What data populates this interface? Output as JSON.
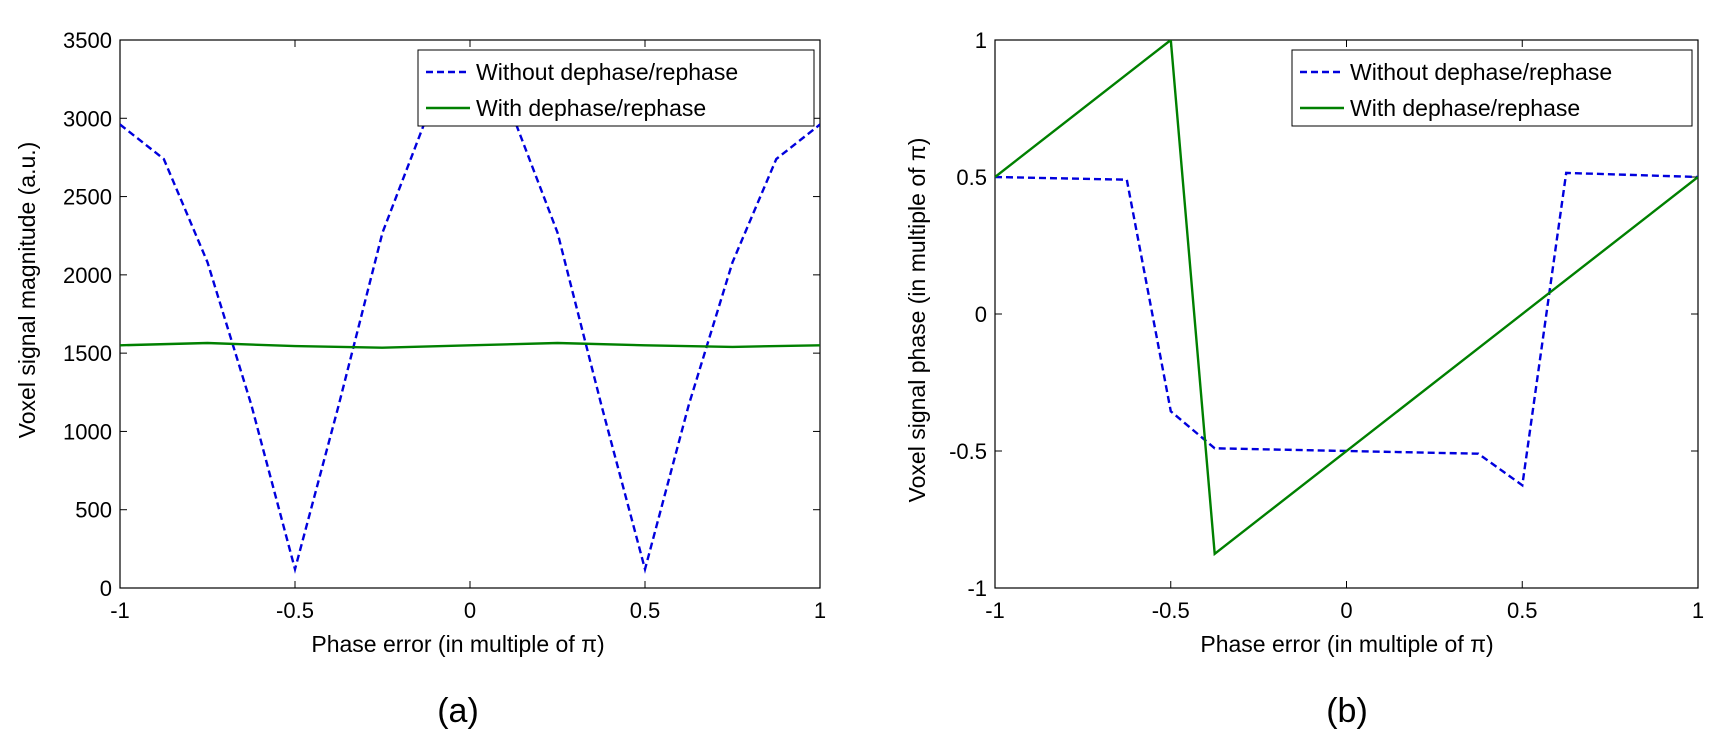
{
  "chart_data": [
    {
      "type": "line",
      "panel_label": "(a)",
      "xlabel": "Phase error (in multiple of π)",
      "ylabel": "Voxel signal magnitude (a.u.)",
      "xlim": [
        -1,
        1
      ],
      "ylim": [
        0,
        3500
      ],
      "xticks": [
        -1,
        -0.5,
        0,
        0.5,
        1
      ],
      "xtick_labels": [
        "-1",
        "-0.5",
        "0",
        "0.5",
        "1"
      ],
      "yticks": [
        0,
        500,
        1000,
        1500,
        2000,
        2500,
        3000,
        3500
      ],
      "ytick_labels": [
        "0",
        "500",
        "1000",
        "1500",
        "2000",
        "2500",
        "3000",
        "3500"
      ],
      "grid": false,
      "legend_position": "top-right",
      "series": [
        {
          "name": "Without dephase/rephase",
          "color": "#0000dd",
          "style": "dashed",
          "x": [
            -1,
            -0.875,
            -0.75,
            -0.625,
            -0.5,
            -0.375,
            -0.25,
            -0.125,
            0,
            0.125,
            0.25,
            0.375,
            0.5,
            0.625,
            0.75,
            0.875,
            1
          ],
          "y": [
            2960,
            2740,
            2080,
            1170,
            120,
            1170,
            2270,
            3000,
            3420,
            3000,
            2270,
            1170,
            120,
            1170,
            2080,
            2740,
            2960
          ]
        },
        {
          "name": "With dephase/rephase",
          "color": "#008000",
          "style": "solid",
          "x": [
            -1,
            -0.75,
            -0.5,
            -0.25,
            0,
            0.25,
            0.5,
            0.75,
            1
          ],
          "y": [
            1550,
            1565,
            1545,
            1535,
            1550,
            1565,
            1550,
            1540,
            1550
          ]
        }
      ]
    },
    {
      "type": "line",
      "panel_label": "(b)",
      "xlabel": "Phase error (in multiple of π)",
      "ylabel": "Voxel signal phase (in multiple of π)",
      "xlim": [
        -1,
        1
      ],
      "ylim": [
        -1,
        1
      ],
      "xticks": [
        -1,
        -0.5,
        0,
        0.5,
        1
      ],
      "xtick_labels": [
        "-1",
        "-0.5",
        "0",
        "0.5",
        "1"
      ],
      "yticks": [
        -1,
        -0.5,
        0,
        0.5,
        1
      ],
      "ytick_labels": [
        "-1",
        "-0.5",
        "0",
        "0.5",
        "1"
      ],
      "grid": false,
      "legend_position": "top-right",
      "series": [
        {
          "name": "Without dephase/rephase",
          "color": "#0000dd",
          "style": "dashed",
          "x": [
            -1,
            -0.625,
            -0.5,
            -0.375,
            0,
            0.375,
            0.5,
            0.625,
            1
          ],
          "y": [
            0.5,
            0.49,
            -0.355,
            -0.49,
            -0.5,
            -0.51,
            -0.625,
            0.515,
            0.5
          ]
        },
        {
          "name": "With dephase/rephase",
          "color": "#008000",
          "style": "solid",
          "x": [
            -1,
            -0.5,
            -0.375,
            1
          ],
          "y": [
            0.5,
            1.0,
            -0.875,
            0.5
          ]
        }
      ]
    }
  ]
}
